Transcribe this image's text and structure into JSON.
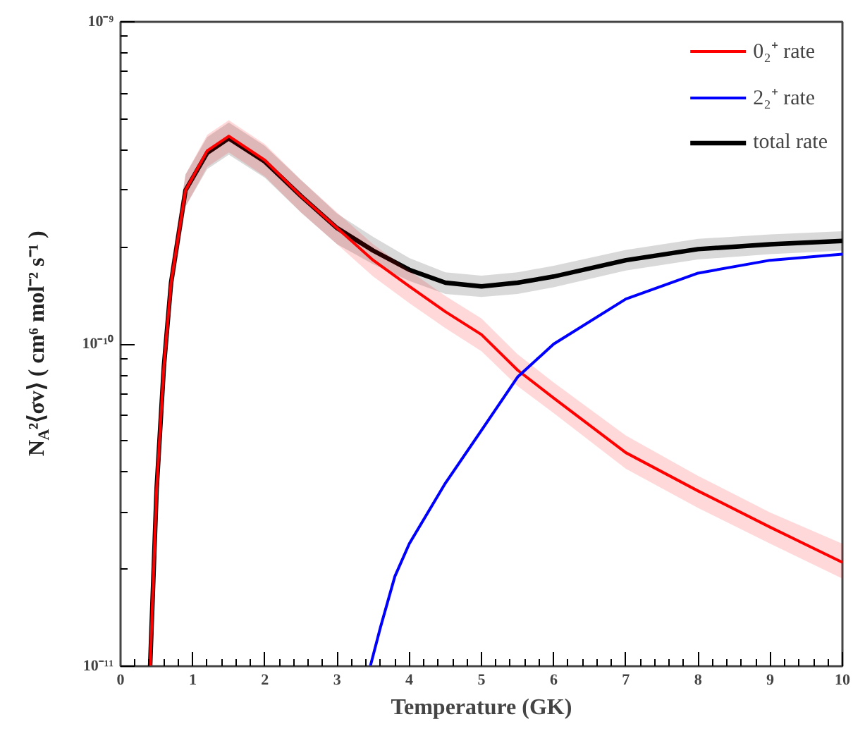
{
  "chart_data": {
    "type": "line",
    "xlabel": "Temperature (GK)",
    "ylabel": "N$_{A}$²⟨σv⟩ ( cm⁶ mol⁻² s⁻¹ )",
    "log": "y",
    "grid": false,
    "legend": "top right",
    "line_style": "solid",
    "marker": "none",
    "xlim": [
      0,
      10
    ],
    "xticks": [
      0,
      1,
      2,
      3,
      4,
      5,
      6,
      7,
      8,
      9,
      10
    ],
    "ylim": [
      1e-11,
      1e-09
    ],
    "yticks": [
      {
        "value": 1e-11,
        "label": "10⁻¹¹"
      },
      {
        "value": 1e-10,
        "label": "10⁻¹⁰"
      },
      {
        "value": 1e-09,
        "label": "10⁻⁹"
      }
    ],
    "series": [
      {
        "name": "0₂⁺ rate",
        "color": "#ff0000",
        "x": [
          0.41,
          0.5,
          0.6,
          0.7,
          0.9,
          1.2,
          1.5,
          2.0,
          2.5,
          3.0,
          3.5,
          4.0,
          4.5,
          5.0,
          5.5,
          6,
          7,
          8,
          9,
          10
        ],
        "values": [
          1e-11,
          3.55e-11,
          8.5e-11,
          1.55e-10,
          3e-10,
          3.98e-10,
          4.42e-10,
          3.72e-10,
          2.88e-10,
          2.29e-10,
          1.82e-10,
          1.51e-10,
          1.26e-10,
          1.07e-10,
          8.3e-11,
          6.8e-11,
          4.6e-11,
          3.5e-11,
          2.7e-11,
          2.1e-11
        ],
        "upper": [
          1.12e-11,
          3.98e-11,
          9.5e-11,
          1.74e-10,
          3.36e-10,
          4.46e-10,
          4.95e-10,
          4.17e-10,
          3.23e-10,
          2.56e-10,
          2.04e-10,
          1.69e-10,
          1.41e-10,
          1.2e-10,
          9.3e-11,
          7.6e-11,
          5.2e-11,
          3.9e-11,
          3e-11,
          2.4e-11
        ],
        "lower": [
          1e-11,
          3.16e-11,
          7.6e-11,
          1.38e-10,
          2.67e-10,
          3.54e-10,
          3.93e-10,
          3.31e-10,
          2.56e-10,
          2.04e-10,
          1.62e-10,
          1.34e-10,
          1.12e-10,
          9.5e-11,
          7.4e-11,
          6.1e-11,
          4.1e-11,
          3.1e-11,
          2.4e-11,
          1.87e-11
        ]
      },
      {
        "name": "2₂⁺ rate",
        "color": "#0000ff",
        "x": [
          3.46,
          3.6,
          3.8,
          4.0,
          4.5,
          5,
          5.5,
          6,
          7,
          8,
          9,
          10
        ],
        "values": [
          1e-11,
          1.32e-11,
          1.9e-11,
          2.4e-11,
          3.7e-11,
          5.4e-11,
          7.9e-11,
          1e-10,
          1.38e-10,
          1.66e-10,
          1.82e-10,
          1.9e-10
        ]
      },
      {
        "name": "total rate",
        "color": "#000000",
        "x": [
          0.41,
          0.5,
          0.6,
          0.7,
          0.9,
          1.2,
          1.5,
          2.0,
          2.5,
          3.0,
          3.5,
          4.0,
          4.5,
          5.0,
          5.5,
          6,
          7,
          8,
          9,
          10
        ],
        "values": [
          1e-11,
          3.55e-11,
          8.5e-11,
          1.55e-10,
          3e-10,
          3.92e-10,
          4.35e-10,
          3.68e-10,
          2.88e-10,
          2.29e-10,
          1.95e-10,
          1.7e-10,
          1.55e-10,
          1.51e-10,
          1.55e-10,
          1.62e-10,
          1.82e-10,
          1.97e-10,
          2.04e-10,
          2.09e-10
        ],
        "upper": [
          1.12e-11,
          3.98e-11,
          9.5e-11,
          1.74e-10,
          3.36e-10,
          4.39e-10,
          4.87e-10,
          4.12e-10,
          3.23e-10,
          2.54e-10,
          2.15e-10,
          1.85e-10,
          1.67e-10,
          1.63e-10,
          1.67e-10,
          1.75e-10,
          1.96e-10,
          2.12e-10,
          2.19e-10,
          2.24e-10
        ],
        "lower": [
          1e-11,
          3.16e-11,
          7.6e-11,
          1.38e-10,
          2.67e-10,
          3.49e-10,
          3.87e-10,
          3.28e-10,
          2.56e-10,
          2.04e-10,
          1.77e-10,
          1.57e-10,
          1.43e-10,
          1.4e-10,
          1.43e-10,
          1.5e-10,
          1.69e-10,
          1.83e-10,
          1.9e-10,
          1.95e-10
        ]
      }
    ]
  }
}
